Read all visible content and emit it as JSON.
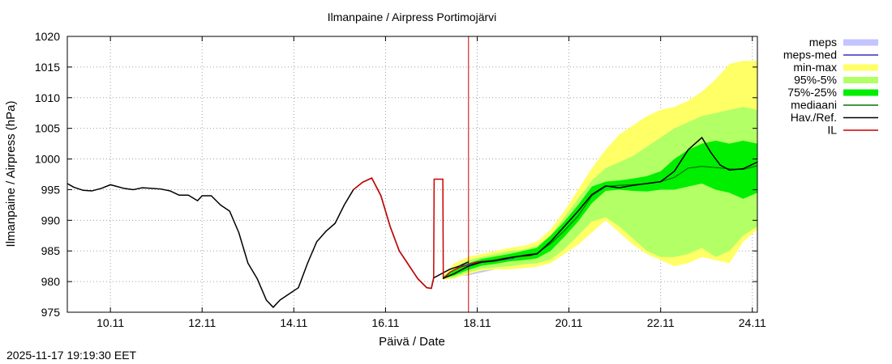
{
  "chart_data": {
    "type": "area",
    "title": "Ilmanpaine / Airpress Portimojärvi",
    "xlabel": "Päivä / Date",
    "ylabel": "Ilmanpaine / Airpress (hPa)",
    "xlim": [
      9.06,
      24.11
    ],
    "ylim": [
      975,
      1020
    ],
    "yticks": [
      975,
      980,
      985,
      990,
      995,
      1000,
      1005,
      1010,
      1015,
      1020
    ],
    "xticks": [
      {
        "v": 10,
        "label": "10.11"
      },
      {
        "v": 12,
        "label": "12.11"
      },
      {
        "v": 14,
        "label": "14.11"
      },
      {
        "v": 16,
        "label": "16.11"
      },
      {
        "v": 18,
        "label": "18.11"
      },
      {
        "v": 20,
        "label": "20.11"
      },
      {
        "v": 22,
        "label": "22.11"
      },
      {
        "v": 24,
        "label": "24.11"
      }
    ],
    "grid": true,
    "forecast_time": 17.81,
    "legend": [
      {
        "key": "meps",
        "label": "meps",
        "color": "#c4c4ff",
        "style": "box"
      },
      {
        "key": "meps_med",
        "label": "meps-med",
        "color": "#3030c0",
        "style": "line"
      },
      {
        "key": "minmax",
        "label": "min-max",
        "color": "#ffff66",
        "style": "box"
      },
      {
        "key": "p95_5",
        "label": "95%-5%",
        "color": "#b2ff66",
        "style": "box"
      },
      {
        "key": "p75_25",
        "label": "75%-25%",
        "color": "#00ee00",
        "style": "box"
      },
      {
        "key": "median",
        "label": "mediaani",
        "color": "#007700",
        "style": "line"
      },
      {
        "key": "obs",
        "label": "Hav./Ref.",
        "color": "#000000",
        "style": "line"
      },
      {
        "key": "il",
        "label": "IL",
        "color": "#cc0000",
        "style": "line"
      }
    ],
    "series": {
      "observed": {
        "name": "Hav./Ref.",
        "x": [
          9.06,
          9.2,
          9.4,
          9.6,
          9.8,
          10.0,
          10.1,
          10.3,
          10.5,
          10.7,
          10.9,
          11.1,
          11.3,
          11.5,
          11.7,
          11.9,
          12.0,
          12.2,
          12.4,
          12.6,
          12.8,
          13.0,
          13.2,
          13.4,
          13.55,
          13.7,
          13.9,
          14.1,
          14.3,
          14.5,
          14.7,
          14.9,
          15.1,
          15.3,
          15.5,
          15.7,
          15.9,
          16.1,
          16.3,
          16.55,
          16.7,
          16.9,
          17.0,
          17.05,
          17.2,
          17.4,
          17.6,
          17.81
        ],
        "y": [
          996.0,
          995.4,
          994.9,
          994.8,
          995.2,
          995.8,
          995.6,
          995.2,
          995.0,
          995.3,
          995.2,
          995.1,
          994.8,
          994.1,
          994.1,
          993.2,
          994.0,
          994.0,
          992.5,
          991.5,
          988.0,
          983.0,
          980.5,
          977.0,
          975.8,
          977.0,
          978.0,
          979.0,
          983.0,
          986.5,
          988.2,
          989.5,
          992.5,
          995.0,
          996.2,
          996.9,
          994.0,
          989.0,
          985.0,
          982.2,
          980.5,
          979.0,
          978.9,
          980.6,
          981.2,
          982.0,
          982.5,
          983.2
        ]
      },
      "il": {
        "name": "IL",
        "x": [
          15.3,
          15.5,
          15.7,
          15.9,
          16.1,
          16.3,
          16.55,
          16.7,
          16.9,
          17.0,
          17.05,
          17.06,
          17.25,
          17.26,
          17.4,
          17.6,
          17.81,
          18.0,
          18.3,
          18.6,
          18.9,
          19.2
        ],
        "y": [
          995.0,
          996.2,
          996.9,
          994.0,
          989.0,
          985.0,
          982.2,
          980.5,
          979.0,
          978.9,
          980.6,
          996.7,
          996.7,
          980.5,
          981.5,
          982.3,
          982.8,
          983.2,
          983.4,
          983.8,
          984.1,
          984.3
        ]
      },
      "meps": {
        "name": "meps",
        "x": [
          17.5,
          17.8,
          18.1,
          18.4,
          18.7,
          19.0,
          19.2,
          19.4,
          19.6,
          19.8,
          20.0,
          20.1
        ],
        "low": [
          980.8,
          981.0,
          981.5,
          982.0,
          982.3,
          982.3,
          982.6,
          983.2,
          983.8,
          984.5,
          985.5,
          986.0
        ],
        "high": [
          981.6,
          982.0,
          982.5,
          983.0,
          983.3,
          983.6,
          984.0,
          984.6,
          985.2,
          986.0,
          986.8,
          987.4
        ]
      },
      "meps_med": {
        "name": "meps-med",
        "x": [
          17.6,
          18.0,
          18.4,
          18.8
        ],
        "y": [
          982.5,
          983.0,
          983.4,
          983.8
        ]
      },
      "median": {
        "name": "mediaani",
        "x": [
          17.25,
          17.5,
          17.8,
          18.1,
          18.4,
          18.7,
          19.0,
          19.3,
          19.6,
          19.9,
          20.2,
          20.5,
          20.8,
          21.1,
          21.4,
          21.7,
          22.0,
          22.3,
          22.6,
          22.9,
          23.2,
          23.5,
          23.8,
          24.11
        ],
        "y": [
          980.5,
          981.3,
          982.5,
          983.2,
          983.5,
          983.9,
          984.3,
          984.6,
          986.2,
          988.3,
          990.7,
          994.0,
          995.5,
          995.7,
          995.8,
          996.0,
          996.3,
          997.0,
          998.5,
          998.8,
          998.6,
          998.4,
          998.3,
          998.9
        ]
      },
      "forecast_obs": {
        "name": "Hav./Ref. (forecast ref)",
        "x": [
          17.25,
          17.5,
          17.8,
          18.1,
          18.4,
          18.7,
          19.0,
          19.3,
          19.6,
          19.9,
          20.2,
          20.5,
          20.8,
          21.1,
          21.4,
          21.7,
          22.0,
          22.3,
          22.6,
          22.9,
          23.1,
          23.3,
          23.5,
          23.8,
          24.11
        ],
        "y": [
          980.5,
          981.3,
          982.5,
          983.2,
          983.4,
          983.9,
          984.2,
          984.5,
          986.5,
          989.0,
          991.5,
          994.2,
          995.6,
          995.3,
          995.7,
          996.0,
          996.3,
          998.0,
          1001.5,
          1003.5,
          1001.0,
          999.0,
          998.2,
          998.4,
          999.5
        ]
      },
      "minmax": {
        "name": "min-max",
        "x": [
          17.25,
          17.5,
          17.8,
          18.1,
          18.4,
          18.7,
          19.0,
          19.3,
          19.6,
          19.9,
          20.2,
          20.5,
          20.8,
          21.1,
          21.4,
          21.7,
          22.0,
          22.3,
          22.6,
          22.9,
          23.2,
          23.5,
          23.8,
          24.11
        ],
        "low": [
          980.3,
          980.5,
          981.2,
          981.8,
          982.0,
          982.0,
          982.2,
          982.4,
          983.0,
          984.5,
          986.0,
          988.0,
          990.0,
          988.0,
          986.0,
          984.5,
          983.5,
          982.5,
          983.0,
          984.0,
          983.5,
          983.0,
          986.5,
          988.5
        ],
        "high": [
          980.9,
          983.0,
          984.0,
          984.5,
          985.0,
          985.5,
          985.8,
          986.5,
          988.5,
          991.5,
          995.0,
          998.5,
          1001.5,
          1004.0,
          1005.5,
          1007.0,
          1008.0,
          1008.5,
          1009.5,
          1011.0,
          1013.0,
          1015.5,
          1016.0,
          1016.0
        ]
      },
      "p95_5": {
        "name": "95%-5%",
        "x": [
          17.25,
          17.5,
          17.8,
          18.1,
          18.4,
          18.7,
          19.0,
          19.3,
          19.6,
          19.9,
          20.2,
          20.5,
          20.8,
          21.1,
          21.4,
          21.7,
          22.0,
          22.3,
          22.6,
          22.9,
          23.2,
          23.5,
          23.8,
          24.11
        ],
        "low": [
          980.4,
          980.7,
          981.5,
          982.1,
          982.3,
          982.5,
          982.8,
          983.0,
          983.6,
          985.3,
          987.5,
          989.8,
          990.5,
          989.0,
          987.0,
          985.0,
          984.0,
          984.0,
          984.5,
          985.5,
          984.0,
          985.0,
          987.5,
          989.0
        ],
        "high": [
          980.8,
          982.3,
          983.5,
          984.0,
          984.5,
          985.0,
          985.2,
          985.8,
          987.5,
          990.5,
          993.5,
          996.5,
          998.5,
          999.5,
          1000.5,
          1002.0,
          1003.5,
          1005.0,
          1006.0,
          1007.0,
          1007.5,
          1008.0,
          1008.5,
          1008.0
        ]
      },
      "p75_25": {
        "name": "75%-25%",
        "x": [
          17.25,
          17.5,
          17.8,
          18.1,
          18.4,
          18.7,
          19.0,
          19.3,
          19.6,
          19.9,
          20.2,
          20.5,
          20.8,
          21.1,
          21.4,
          21.7,
          22.0,
          22.3,
          22.6,
          22.9,
          23.2,
          23.5,
          23.8,
          24.11
        ],
        "low": [
          980.5,
          981.0,
          981.9,
          982.6,
          982.9,
          983.3,
          983.5,
          983.8,
          985.0,
          987.3,
          989.8,
          992.8,
          994.8,
          995.0,
          994.8,
          994.7,
          995.0,
          995.0,
          995.5,
          996.0,
          995.0,
          994.5,
          993.5,
          994.5
        ],
        "high": [
          980.7,
          981.8,
          983.0,
          983.7,
          984.1,
          984.5,
          985.0,
          985.5,
          987.5,
          989.8,
          992.5,
          995.5,
          996.3,
          996.5,
          996.8,
          997.2,
          998.0,
          1000.0,
          1001.5,
          1002.5,
          1003.0,
          1002.5,
          1003.0,
          1002.5
        ]
      }
    }
  },
  "timestamp": "2025-11-17 19:19:30 EET"
}
